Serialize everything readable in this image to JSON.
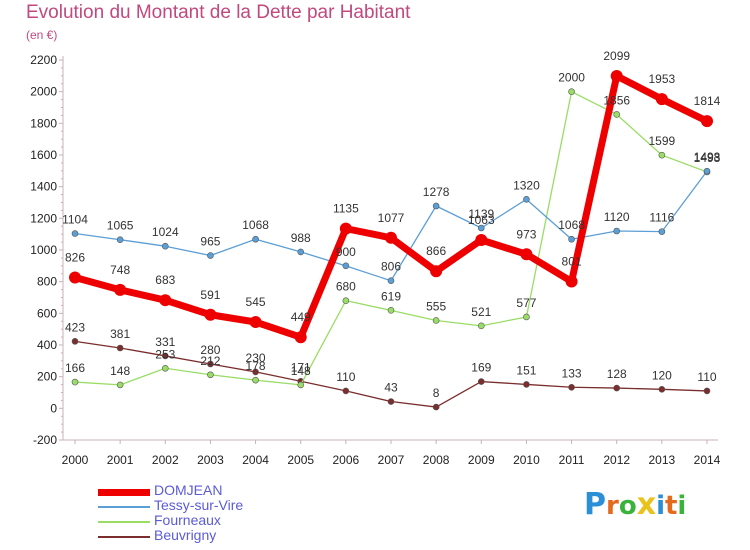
{
  "chart_data": {
    "type": "line",
    "title": "Evolution du Montant de la Dette par Habitant",
    "subtitle": "(en €)",
    "x": [
      2000,
      2001,
      2002,
      2003,
      2004,
      2005,
      2006,
      2007,
      2008,
      2009,
      2010,
      2011,
      2012,
      2013,
      2014
    ],
    "y_ticks": [
      -200,
      0,
      200,
      400,
      600,
      800,
      1000,
      1200,
      1400,
      1600,
      1800,
      2000,
      2200
    ],
    "ylim": [
      -200,
      2200
    ],
    "grid": false,
    "legend_position": "bottom-left",
    "series": [
      {
        "name": "DOMJEAN",
        "color": "#ee0000",
        "values": [
          826,
          748,
          683,
          591,
          545,
          449,
          1135,
          1077,
          866,
          1063,
          973,
          801,
          2099,
          1953,
          1814
        ]
      },
      {
        "name": "Tessy-sur-Vire",
        "color": "#5c9fd6",
        "values": [
          1104,
          1065,
          1024,
          965,
          1068,
          988,
          900,
          806,
          1278,
          1139,
          1320,
          1068,
          1120,
          1116,
          1498
        ]
      },
      {
        "name": "Fourneaux",
        "color": "#99dd66",
        "values": [
          166,
          148,
          253,
          212,
          178,
          148,
          680,
          619,
          555,
          521,
          577,
          2000,
          1856,
          1599,
          1493
        ]
      },
      {
        "name": "Beuvrigny",
        "color": "#7a2e2e",
        "values": [
          423,
          381,
          331,
          280,
          230,
          171,
          110,
          43,
          8,
          169,
          151,
          133,
          128,
          120,
          110
        ]
      }
    ]
  },
  "logo": {
    "letters": [
      "P",
      "r",
      "o",
      "x",
      "i",
      "t",
      "i"
    ],
    "colors": [
      "#2a8fd6",
      "#e46a1d",
      "#3bb33b",
      "#e9c21c",
      "#2a8fd6",
      "#e46a1d",
      "#3bb33b"
    ]
  }
}
